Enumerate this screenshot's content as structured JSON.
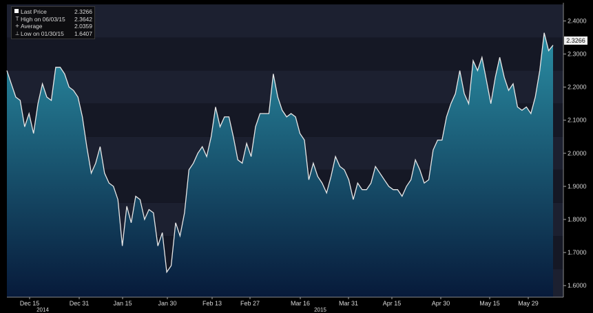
{
  "legend": {
    "rows": [
      {
        "glyph": "",
        "label": "Last Price",
        "value": "2.3266"
      },
      {
        "glyph": "T",
        "label": "High on 06/03/15",
        "value": "2.3642"
      },
      {
        "glyph": "+",
        "label": "Average",
        "value": "2.0359"
      },
      {
        "glyph": "⊥",
        "label": "Low on 01/30/15",
        "value": "1.6407"
      }
    ]
  },
  "last_tag": "2.3266",
  "chart_data": {
    "type": "area",
    "title": "",
    "xlabel": "",
    "ylabel": "",
    "ylim": [
      1.565,
      2.455
    ],
    "y_ticks": [
      "1.6000",
      "1.7000",
      "1.8000",
      "1.9000",
      "2.0000",
      "2.1000",
      "2.2000",
      "2.3000",
      "2.4000"
    ],
    "x_ticks": [
      "Dec 15",
      "Dec 31",
      "Jan 15",
      "Jan 30",
      "Feb 13",
      "Feb 27",
      "Mar 16",
      "Mar 31",
      "Apr 15",
      "Apr 30",
      "May 15",
      "May 29"
    ],
    "year_labels": [
      "2014",
      "2015"
    ],
    "grid": true,
    "colors": {
      "line": "#e8e8e8",
      "fill_top": "#2a8ea4",
      "fill_bottom": "#071a3a",
      "background": "#000000"
    },
    "series": [
      {
        "values": [
          2.25,
          2.21,
          2.17,
          2.16,
          2.08,
          2.12,
          2.06,
          2.15,
          2.21,
          2.17,
          2.16,
          2.26,
          2.26,
          2.24,
          2.2,
          2.19,
          2.17,
          2.11,
          2.02,
          1.94,
          1.97,
          2.02,
          1.94,
          1.91,
          1.9,
          1.86,
          1.72,
          1.84,
          1.79,
          1.87,
          1.86,
          1.8,
          1.83,
          1.82,
          1.72,
          1.76,
          1.6407,
          1.66,
          1.79,
          1.75,
          1.82,
          1.95,
          1.97,
          2.0,
          2.02,
          1.99,
          2.05,
          2.14,
          2.08,
          2.11,
          2.11,
          2.05,
          1.98,
          1.97,
          2.03,
          1.99,
          2.08,
          2.12,
          2.12,
          2.12,
          2.24,
          2.17,
          2.13,
          2.11,
          2.12,
          2.11,
          2.06,
          2.04,
          1.92,
          1.97,
          1.93,
          1.91,
          1.88,
          1.93,
          1.99,
          1.96,
          1.95,
          1.92,
          1.86,
          1.91,
          1.89,
          1.89,
          1.91,
          1.96,
          1.94,
          1.92,
          1.9,
          1.89,
          1.89,
          1.87,
          1.9,
          1.92,
          1.98,
          1.95,
          1.91,
          1.92,
          2.01,
          2.04,
          2.04,
          2.11,
          2.15,
          2.18,
          2.25,
          2.18,
          2.15,
          2.28,
          2.25,
          2.29,
          2.22,
          2.15,
          2.23,
          2.29,
          2.23,
          2.19,
          2.21,
          2.14,
          2.13,
          2.14,
          2.12,
          2.17,
          2.25,
          2.3642,
          2.31,
          2.3266
        ]
      }
    ]
  }
}
